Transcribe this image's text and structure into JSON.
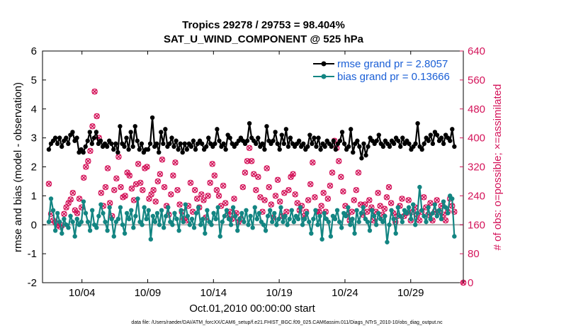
{
  "chart_data": {
    "type": "line",
    "title_line1": "Tropics 29278 / 29753 = 98.404%",
    "title_line2": "SAT_U_WIND_COMPONENT @ 525 hPa",
    "xlabel": "Oct.01,2010 00:00:00 start",
    "ylabel_left": "rmse and bias (model - observation)",
    "ylabel_right": "# of obs: o=possible; ×=assimilated",
    "footer": "data file: /Users/raeder/DAI/ATM_forcXX/CAM6_setup/f.e21.FHIST_BGC.f09_025.CAM6assim.011/Diags_NTrS_2010-10/obs_diag_output.nc",
    "x_tick_labels": [
      "10/04",
      "10/09",
      "10/14",
      "10/19",
      "10/24",
      "10/29"
    ],
    "x_tick_days": [
      4,
      9,
      14,
      19,
      24,
      29
    ],
    "xlim_days": [
      1.0,
      33.0
    ],
    "ylim_left": [
      -2,
      6
    ],
    "y_ticks_left": [
      "-2",
      "-1",
      "0",
      "1",
      "2",
      "3",
      "4",
      "5",
      "6"
    ],
    "ylim_right": [
      0,
      640
    ],
    "y_ticks_right": [
      "0",
      "80",
      "160",
      "240",
      "320",
      "400",
      "480",
      "560",
      "640"
    ],
    "legend": [
      "rmse grand pr = 2.8057",
      "bias grand pr = 0.13666"
    ],
    "colors": {
      "rmse": "#000000",
      "bias": "#138582",
      "obs": "#d4145a",
      "right_axis": "#d4145a",
      "legend_text": "#1a5fd6",
      "zero_line": "#b0b0b0"
    },
    "series": [
      {
        "name": "rmse",
        "axis": "left",
        "values": [
          2.6,
          2.8,
          2.9,
          3.0,
          2.8,
          3.0,
          2.7,
          2.9,
          3.0,
          2.8,
          3.1,
          3.2,
          2.9,
          3.0,
          2.5,
          2.6,
          2.5,
          2.7,
          2.9,
          3.2,
          2.8,
          3.0,
          3.2,
          2.8,
          2.9,
          2.7,
          2.8,
          2.7,
          2.9,
          2.8,
          2.6,
          2.8,
          2.5,
          3.4,
          2.8,
          2.7,
          3.0,
          2.6,
          3.2,
          2.7,
          3.4,
          2.9,
          2.6,
          2.8,
          2.5,
          2.6,
          2.6,
          2.8,
          3.7,
          2.7,
          2.8,
          2.5,
          3.2,
          2.8,
          3.3,
          2.7,
          2.8,
          3.0,
          2.7,
          2.9,
          2.6,
          2.8,
          2.5,
          2.8,
          2.6,
          2.8,
          2.7,
          2.9,
          2.6,
          2.8,
          2.9,
          2.8,
          2.6,
          2.7,
          3.0,
          2.8,
          2.7,
          2.8,
          3.3,
          2.9,
          2.7,
          2.8,
          2.6,
          3.1,
          3.0,
          2.8,
          2.7,
          2.8,
          2.9,
          3.0,
          2.9,
          2.8,
          2.9,
          3.5,
          3.0,
          2.9,
          2.8,
          3.0,
          2.7,
          2.8,
          2.6,
          3.4,
          2.9,
          2.8,
          2.9,
          3.2,
          2.8,
          2.6,
          3.1,
          2.8,
          3.3,
          2.7,
          3.0,
          2.8,
          2.7,
          2.8,
          2.9,
          2.7,
          2.8,
          2.6,
          2.7,
          3.1,
          2.8,
          3.0,
          2.7,
          3.0,
          2.6,
          2.8,
          2.7,
          2.9,
          2.8,
          2.7,
          2.9,
          2.6,
          2.8,
          2.9,
          3.2,
          2.8,
          2.6,
          2.7,
          3.3,
          2.5,
          2.8,
          2.9,
          2.7,
          2.3,
          2.8,
          2.4,
          2.7,
          3.0,
          2.9,
          2.8,
          2.9,
          3.1,
          2.8,
          2.7,
          2.9,
          2.8,
          2.7,
          2.9,
          2.8,
          3.0,
          2.9,
          2.7,
          3.0,
          2.8,
          2.9,
          2.8,
          2.6,
          2.7,
          2.8,
          3.5,
          2.7,
          2.6,
          2.8,
          3.0,
          2.9,
          3.1,
          2.8,
          3.2,
          3.1,
          2.9,
          3.0,
          2.8,
          3.1,
          3.0,
          2.9,
          3.3,
          2.7
        ]
      },
      {
        "name": "bias",
        "axis": "left",
        "values": [
          0.1,
          0.9,
          0.5,
          -0.2,
          0.4,
          0.1,
          -0.3,
          0.2,
          0.0,
          -0.1,
          0.3,
          0.1,
          -0.4,
          0.2,
          0.0,
          0.1,
          0.8,
          0.4,
          0.1,
          -0.2,
          0.5,
          0.0,
          -0.1,
          0.3,
          0.7,
          0.4,
          0.1,
          -0.2,
          0.6,
          0.2,
          -0.4,
          0.1,
          0.2,
          0.6,
          0.0,
          -0.3,
          0.4,
          0.2,
          0.5,
          -0.1,
          0.3,
          0.9,
          0.1,
          0.0,
          0.6,
          0.2,
          0.5,
          -0.5,
          0.3,
          0.1,
          0.4,
          0.0,
          0.5,
          -0.1,
          0.3,
          0.6,
          0.1,
          0.0,
          0.4,
          0.2,
          -0.2,
          0.5,
          0.1,
          0.7,
          0.3,
          0.0,
          0.2,
          -0.1,
          0.4,
          0.6,
          0.0,
          0.2,
          -0.3,
          0.5,
          0.1,
          0.0,
          0.4,
          0.2,
          0.6,
          -0.4,
          0.1,
          0.3,
          0.5,
          0.2,
          0.0,
          0.6,
          0.3,
          -0.2,
          0.2,
          0.4,
          0.1,
          0.5,
          0.0,
          0.3,
          -0.1,
          0.6,
          0.2,
          0.4,
          0.1,
          0.0,
          -0.2,
          0.3,
          0.5,
          0.1,
          0.4,
          0.0,
          0.2,
          0.6,
          0.1,
          0.3,
          0.0,
          0.2,
          0.5,
          0.1,
          0.3,
          0.2,
          0.6,
          0.0,
          0.2,
          0.4,
          0.1,
          -0.3,
          0.2,
          0.5,
          0.0,
          0.3,
          -0.5,
          0.4,
          0.2,
          0.1,
          -0.4,
          0.3,
          0.2,
          0.5,
          0.1,
          -0.1,
          0.4,
          0.3,
          0.6,
          0.0,
          0.2,
          -0.3,
          0.5,
          0.1,
          0.4,
          0.6,
          0.2,
          0.1,
          -0.2,
          0.5,
          0.3,
          0.0,
          0.4,
          0.2,
          0.1,
          0.3,
          -0.6,
          0.0,
          0.5,
          0.2,
          -0.3,
          0.6,
          0.3,
          0.1,
          0.5,
          0.4,
          0.6,
          0.2,
          0.7,
          0.0,
          0.4,
          1.3,
          0.5,
          0.3,
          0.1,
          0.6,
          0.2,
          0.4,
          0.7,
          0.3,
          0.5,
          0.2,
          0.8,
          0.6,
          0.4,
          1.0,
          0.9,
          -0.4
        ]
      },
      {
        "name": "obs_possible",
        "axis": "right",
        "marker": "circle",
        "values": [
          273,
          190,
          172,
          166,
          160,
          155,
          158,
          190,
          208,
          220,
          230,
          248,
          200,
          192,
          232,
          208,
          290,
          320,
          336,
          364,
          432,
          528,
          460,
          400,
          248,
          212,
          264,
          316,
          220,
          184,
          256,
          288,
          348,
          264,
          236,
          240,
          304,
          296,
          260,
          228,
          272,
          328,
          276,
          256,
          316,
          320,
          232,
          244,
          256,
          224,
          280,
          300,
          340,
          264,
          212,
          188,
          244,
          296,
          332,
          256,
          216,
          196,
          176,
          172,
          212,
          276,
          196,
          256,
          232,
          208,
          244,
          228,
          180,
          240,
          276,
          328,
          296,
          256,
          240,
          212,
          268,
          220,
          188,
          196,
          176,
          232,
          192,
          168,
          176,
          264,
          304,
          336,
          372,
          336,
          300,
          256,
          292,
          236,
          196,
          228,
          316,
          264,
          216,
          180,
          240,
          284,
          224,
          184,
          248,
          196,
          256,
          292,
          300,
          244,
          220,
          200,
          212,
          184,
          196,
          228,
          272,
          332,
          236,
          196,
          196,
          212,
          248,
          196,
          232,
          268,
          304,
          392,
          372,
          336,
          292,
          252,
          212,
          188,
          172,
          196,
          228,
          256,
          304,
          216,
          188,
          216,
          196,
          228,
          208,
          172,
          196,
          248,
          212,
          188,
          204,
          236,
          264,
          220,
          192,
          168,
          184,
          212,
          232,
          184,
          192,
          228,
          172,
          196,
          208,
          188,
          172,
          196,
          236,
          208,
          188,
          220,
          172,
          196,
          228,
          196,
          212,
          188,
          172,
          196,
          232,
          212,
          196,
          0
        ]
      },
      {
        "name": "obs_assimilated",
        "axis": "right",
        "marker": "x",
        "values": [
          273,
          190,
          172,
          166,
          160,
          155,
          158,
          190,
          208,
          220,
          230,
          248,
          200,
          192,
          232,
          208,
          290,
          320,
          336,
          364,
          432,
          528,
          460,
          400,
          248,
          212,
          264,
          316,
          220,
          184,
          256,
          288,
          348,
          264,
          236,
          240,
          304,
          296,
          260,
          228,
          272,
          328,
          276,
          256,
          316,
          320,
          232,
          244,
          256,
          224,
          280,
          300,
          340,
          264,
          212,
          188,
          244,
          296,
          332,
          256,
          216,
          196,
          176,
          172,
          212,
          276,
          196,
          256,
          232,
          208,
          244,
          228,
          180,
          240,
          276,
          328,
          296,
          256,
          240,
          212,
          268,
          220,
          188,
          196,
          176,
          232,
          192,
          168,
          176,
          264,
          304,
          336,
          372,
          336,
          300,
          256,
          292,
          236,
          196,
          228,
          316,
          264,
          216,
          180,
          240,
          284,
          224,
          184,
          248,
          196,
          256,
          292,
          300,
          244,
          220,
          200,
          212,
          184,
          196,
          228,
          272,
          332,
          236,
          196,
          196,
          212,
          248,
          196,
          232,
          268,
          304,
          392,
          372,
          336,
          292,
          252,
          212,
          188,
          172,
          196,
          228,
          256,
          304,
          216,
          188,
          216,
          196,
          228,
          208,
          172,
          196,
          248,
          212,
          188,
          204,
          236,
          264,
          220,
          192,
          168,
          184,
          212,
          232,
          184,
          192,
          228,
          172,
          196,
          208,
          188,
          172,
          196,
          236,
          208,
          188,
          220,
          172,
          196,
          228,
          196,
          212,
          188,
          172,
          196,
          232,
          212,
          196,
          0
        ]
      }
    ]
  }
}
